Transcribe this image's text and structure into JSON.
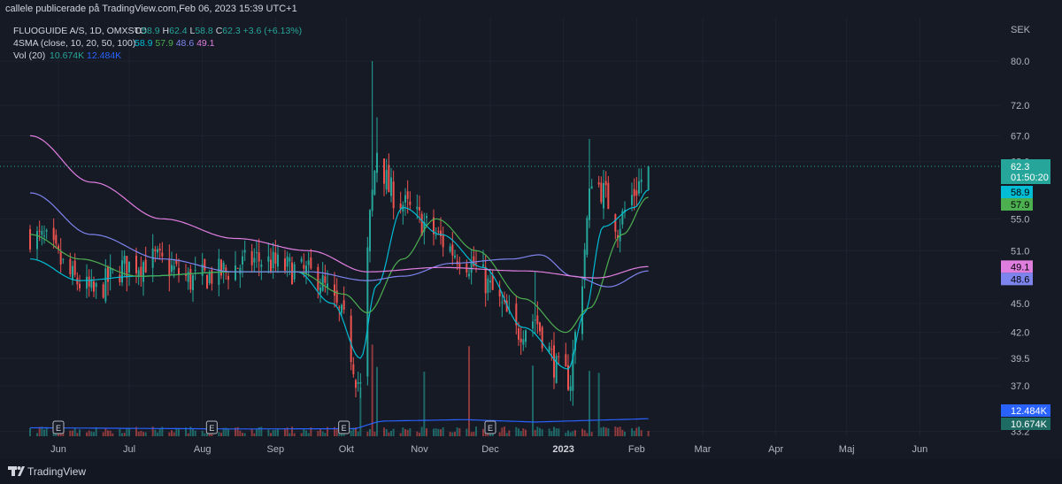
{
  "header": {
    "publisher": "callele publicerade på TradingView.com,Feb 06, 2023 15:39 UTC+1",
    "symbol": "FLUOGUIDE A/S, 1D, OMXSTO",
    "ohlc": [
      {
        "k": "O",
        "v": "58.9"
      },
      {
        "k": "H",
        "v": "62.4"
      },
      {
        "k": "L",
        "v": "58.8"
      },
      {
        "k": "C",
        "v": "62.3"
      }
    ],
    "change": "+3.6 (+6.13%)",
    "sma_label": "4SMA (close, 10, 20, 50, 100)",
    "sma_values": [
      "58.9",
      "57.9",
      "48.6",
      "49.1"
    ],
    "vol_label": "Vol (20)",
    "vol_values": [
      "10.674K",
      "12.484K"
    ]
  },
  "footer": {
    "brand": "TradingView"
  },
  "colors": {
    "background": "#161a25",
    "up": "#26a69a",
    "down": "#ef5350",
    "sma10": "#00bcd4",
    "sma20": "#4caf50",
    "sma50": "#7e84ee",
    "sma100": "#e07ee0",
    "vol_ma": "#2962ff"
  },
  "chart_data": {
    "type": "candlestick",
    "currency": "SEK",
    "price_ticks": [
      "80.0",
      "72.0",
      "67.0",
      "63.0",
      "55.0",
      "51.0",
      "45.0",
      "42.0",
      "39.5",
      "37.0",
      "33.2"
    ],
    "y_scale": "log",
    "ylim": [
      33.2,
      84
    ],
    "x_ticks": [
      "Jun",
      "Jul",
      "Aug",
      "Sep",
      "Okt",
      "Nov",
      "Dec",
      "2023",
      "Feb",
      "Mar",
      "Apr",
      "Maj",
      "Jun"
    ],
    "earnings_markers": [
      "Jun",
      "Aug",
      "Okt",
      "Dec"
    ],
    "earnings_label": "E",
    "last": {
      "price": "62.3",
      "countdown": "01:50:20"
    },
    "axis_badges": [
      {
        "label": "58.9",
        "value": 58.9,
        "series": "sma10"
      },
      {
        "label": "57.9",
        "value": 57.9,
        "series": "sma20"
      },
      {
        "label": "49.1",
        "value": 49.1,
        "series": "sma100"
      },
      {
        "label": "48.6",
        "value": 48.6,
        "series": "sma50"
      }
    ],
    "volume_badges": [
      "12.484K",
      "10.674K"
    ],
    "anchors": [
      {
        "d": "2022-05-20",
        "p": 53
      },
      {
        "d": "2022-05-27",
        "p": 52
      },
      {
        "d": "2022-06-06",
        "p": 48
      },
      {
        "d": "2022-06-16",
        "p": 46
      },
      {
        "d": "2022-06-28",
        "p": 49
      },
      {
        "d": "2022-07-12",
        "p": 50
      },
      {
        "d": "2022-07-27",
        "p": 47.5
      },
      {
        "d": "2022-08-10",
        "p": 48.5
      },
      {
        "d": "2022-08-24",
        "p": 50
      },
      {
        "d": "2022-09-05",
        "p": 49
      },
      {
        "d": "2022-09-19",
        "p": 48
      },
      {
        "d": "2022-09-30",
        "p": 43
      },
      {
        "d": "2022-10-05",
        "p": 38
      },
      {
        "d": "2022-10-07",
        "p": 36.8
      },
      {
        "d": "2022-10-11",
        "p": 55
      },
      {
        "d": "2022-10-14",
        "p": 65
      },
      {
        "d": "2022-10-19",
        "p": 59
      },
      {
        "d": "2022-10-25",
        "p": 57
      },
      {
        "d": "2022-11-04",
        "p": 54
      },
      {
        "d": "2022-11-15",
        "p": 51
      },
      {
        "d": "2022-11-25",
        "p": 49
      },
      {
        "d": "2022-12-05",
        "p": 45
      },
      {
        "d": "2022-12-12",
        "p": 42
      },
      {
        "d": "2022-12-20",
        "p": 43.5
      },
      {
        "d": "2022-12-29",
        "p": 38.5
      },
      {
        "d": "2023-01-04",
        "p": 37.5
      },
      {
        "d": "2023-01-09",
        "p": 48
      },
      {
        "d": "2023-01-13",
        "p": 61
      },
      {
        "d": "2023-01-19",
        "p": 58
      },
      {
        "d": "2023-01-24",
        "p": 54
      },
      {
        "d": "2023-01-30",
        "p": 58
      },
      {
        "d": "2023-02-06",
        "p": 62.3
      }
    ],
    "spikes": [
      {
        "d": "2022-10-12",
        "high": 80
      },
      {
        "d": "2022-10-14",
        "high": 70
      },
      {
        "d": "2023-01-12",
        "high": 66.5
      },
      {
        "d": "2022-12-20",
        "high": 48.5
      }
    ],
    "sma_curves": {
      "sma10": [
        {
          "d": "2022-05-20",
          "p": 50
        },
        {
          "d": "2022-06-10",
          "p": 47.5
        },
        {
          "d": "2022-07-05",
          "p": 48
        },
        {
          "d": "2022-08-15",
          "p": 48.5
        },
        {
          "d": "2022-09-10",
          "p": 48.5
        },
        {
          "d": "2022-09-25",
          "p": 45
        },
        {
          "d": "2022-10-07",
          "p": 39.5
        },
        {
          "d": "2022-10-14",
          "p": 47
        },
        {
          "d": "2022-10-25",
          "p": 56.5
        },
        {
          "d": "2022-11-10",
          "p": 53
        },
        {
          "d": "2022-11-28",
          "p": 49
        },
        {
          "d": "2022-12-15",
          "p": 42.5
        },
        {
          "d": "2023-01-03",
          "p": 38.5
        },
        {
          "d": "2023-01-10",
          "p": 44
        },
        {
          "d": "2023-01-18",
          "p": 54
        },
        {
          "d": "2023-01-31",
          "p": 56.5
        },
        {
          "d": "2023-02-06",
          "p": 58.9
        }
      ],
      "sma20": [
        {
          "d": "2022-05-20",
          "p": 53
        },
        {
          "d": "2022-06-10",
          "p": 50
        },
        {
          "d": "2022-07-05",
          "p": 48
        },
        {
          "d": "2022-08-15",
          "p": 48.5
        },
        {
          "d": "2022-09-10",
          "p": 48.5
        },
        {
          "d": "2022-09-30",
          "p": 46
        },
        {
          "d": "2022-10-10",
          "p": 44
        },
        {
          "d": "2022-10-25",
          "p": 50
        },
        {
          "d": "2022-11-08",
          "p": 55
        },
        {
          "d": "2022-11-25",
          "p": 51
        },
        {
          "d": "2022-12-15",
          "p": 45.5
        },
        {
          "d": "2023-01-02",
          "p": 42
        },
        {
          "d": "2023-01-12",
          "p": 44.5
        },
        {
          "d": "2023-01-26",
          "p": 53
        },
        {
          "d": "2023-02-06",
          "p": 57.9
        }
      ],
      "sma50": [
        {
          "d": "2022-05-20",
          "p": 58.5
        },
        {
          "d": "2022-06-15",
          "p": 53
        },
        {
          "d": "2022-07-15",
          "p": 50
        },
        {
          "d": "2022-08-15",
          "p": 48.5
        },
        {
          "d": "2022-09-15",
          "p": 48.5
        },
        {
          "d": "2022-10-10",
          "p": 47.5
        },
        {
          "d": "2022-10-25",
          "p": 48
        },
        {
          "d": "2022-11-15",
          "p": 49.5
        },
        {
          "d": "2022-12-10",
          "p": 50
        },
        {
          "d": "2022-12-22",
          "p": 50.5
        },
        {
          "d": "2023-01-05",
          "p": 48
        },
        {
          "d": "2023-01-20",
          "p": 46.8
        },
        {
          "d": "2023-02-06",
          "p": 48.6
        }
      ],
      "sma100": [
        {
          "d": "2022-05-20",
          "p": 67
        },
        {
          "d": "2022-06-15",
          "p": 60
        },
        {
          "d": "2022-07-15",
          "p": 55
        },
        {
          "d": "2022-08-15",
          "p": 52.5
        },
        {
          "d": "2022-09-15",
          "p": 51
        },
        {
          "d": "2022-10-10",
          "p": 48.5
        },
        {
          "d": "2022-11-10",
          "p": 49
        },
        {
          "d": "2022-12-15",
          "p": 48.6
        },
        {
          "d": "2023-01-15",
          "p": 47.8
        },
        {
          "d": "2023-02-06",
          "p": 49.1
        }
      ]
    },
    "volume_ma": [
      {
        "d": "2022-05-20",
        "v": 0.28
      },
      {
        "d": "2022-08-15",
        "v": 0.24
      },
      {
        "d": "2022-10-05",
        "v": 0.25
      },
      {
        "d": "2022-10-15",
        "v": 0.5
      },
      {
        "d": "2022-11-20",
        "v": 0.55
      },
      {
        "d": "2022-12-20",
        "v": 0.47
      },
      {
        "d": "2023-01-10",
        "v": 0.52
      },
      {
        "d": "2023-02-06",
        "v": 0.58
      }
    ],
    "volume_spikes": [
      {
        "d": "2022-10-12",
        "v": 1.5
      },
      {
        "d": "2022-10-14",
        "v": 1.0
      },
      {
        "d": "2022-11-03",
        "v": 0.9
      },
      {
        "d": "2022-11-22",
        "v": 1.3
      },
      {
        "d": "2022-12-19",
        "v": 1.1
      },
      {
        "d": "2023-01-12",
        "v": 0.95
      },
      {
        "d": "2023-01-16",
        "v": 1.05
      },
      {
        "d": "2022-10-07",
        "v": 0.8
      }
    ]
  }
}
